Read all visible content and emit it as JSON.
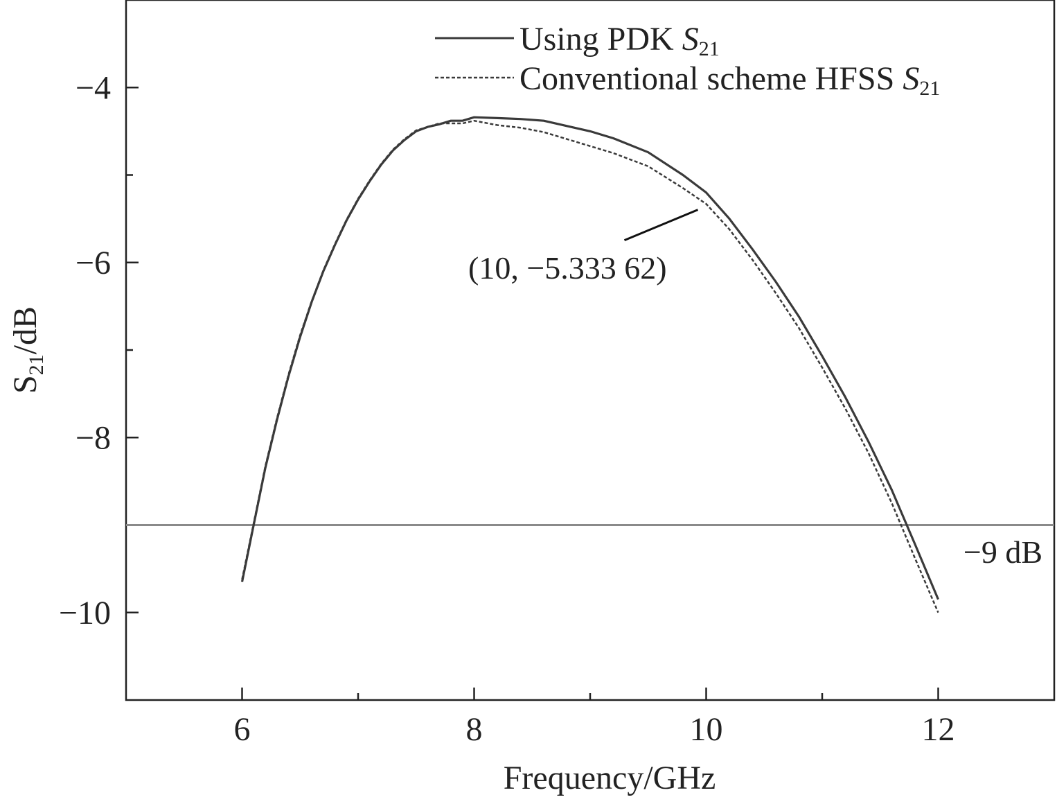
{
  "chart_data": {
    "type": "line",
    "xlabel": "Frequency/GHz",
    "ylabel": {
      "base": "S",
      "sub": "21",
      "rest": "/dB"
    },
    "xlim": [
      5,
      13
    ],
    "ylim": [
      -11,
      -3
    ],
    "xticks": [
      6,
      8,
      10,
      12
    ],
    "xtick_labels": [
      "6",
      "8",
      "10",
      "12"
    ],
    "xminor_ticks": [
      7,
      9,
      11
    ],
    "yticks": [
      -4,
      -6,
      -8,
      -10
    ],
    "ytick_labels": [
      "−4",
      "−6",
      "−8",
      "−10"
    ],
    "yminor_ticks": [
      -5,
      -7,
      -9
    ],
    "legend": {
      "placement": "top-center",
      "entries": [
        {
          "text": "Using PDK ",
          "italic": "S",
          "sub": "21",
          "style": "solid"
        },
        {
          "text": "Conventional scheme HFSS ",
          "italic": "S",
          "sub": "21",
          "style": "dashed"
        }
      ]
    },
    "hline": {
      "y": -9,
      "label": "−9 dB",
      "color": "#8a8a8a"
    },
    "annotation": {
      "text": "(10, −5.333 62)",
      "x": 10,
      "y": -5.33362
    },
    "series": [
      {
        "name": "Using PDK S21",
        "style": "solid",
        "color": "#3a3a3a",
        "x": [
          6.0,
          6.1,
          6.2,
          6.3,
          6.4,
          6.5,
          6.6,
          6.7,
          6.8,
          6.9,
          7.0,
          7.1,
          7.2,
          7.3,
          7.4,
          7.5,
          7.6,
          7.7,
          7.8,
          7.9,
          8.0,
          8.2,
          8.4,
          8.6,
          8.8,
          9.0,
          9.2,
          9.5,
          9.8,
          10.0,
          10.2,
          10.4,
          10.6,
          10.8,
          11.0,
          11.2,
          11.4,
          11.6,
          11.8,
          12.0
        ],
        "y": [
          -9.65,
          -9.0,
          -8.35,
          -7.8,
          -7.3,
          -6.85,
          -6.45,
          -6.1,
          -5.8,
          -5.52,
          -5.28,
          -5.07,
          -4.88,
          -4.72,
          -4.6,
          -4.5,
          -4.45,
          -4.42,
          -4.38,
          -4.38,
          -4.34,
          -4.35,
          -4.36,
          -4.38,
          -4.44,
          -4.5,
          -4.58,
          -4.74,
          -5.0,
          -5.2,
          -5.5,
          -5.85,
          -6.22,
          -6.62,
          -7.07,
          -7.54,
          -8.05,
          -8.6,
          -9.22,
          -9.85
        ]
      },
      {
        "name": "Conventional scheme HFSS S21",
        "style": "dashed",
        "color": "#3a3a3a",
        "x": [
          6.0,
          6.1,
          6.2,
          6.3,
          6.4,
          6.5,
          6.6,
          6.7,
          6.8,
          6.9,
          7.0,
          7.1,
          7.2,
          7.3,
          7.4,
          7.5,
          7.6,
          7.7,
          7.8,
          7.9,
          8.0,
          8.2,
          8.4,
          8.6,
          8.8,
          9.0,
          9.2,
          9.5,
          9.8,
          10.0,
          10.2,
          10.4,
          10.6,
          10.8,
          11.0,
          11.2,
          11.4,
          11.6,
          11.8,
          12.0
        ],
        "y": [
          -9.62,
          -8.98,
          -8.33,
          -7.78,
          -7.28,
          -6.83,
          -6.44,
          -6.09,
          -5.79,
          -5.51,
          -5.27,
          -5.06,
          -4.87,
          -4.71,
          -4.59,
          -4.49,
          -4.45,
          -4.41,
          -4.41,
          -4.41,
          -4.38,
          -4.43,
          -4.46,
          -4.51,
          -4.59,
          -4.67,
          -4.75,
          -4.9,
          -5.15,
          -5.33,
          -5.62,
          -5.97,
          -6.35,
          -6.75,
          -7.2,
          -7.67,
          -8.18,
          -8.75,
          -9.38,
          -10.0
        ]
      }
    ]
  }
}
